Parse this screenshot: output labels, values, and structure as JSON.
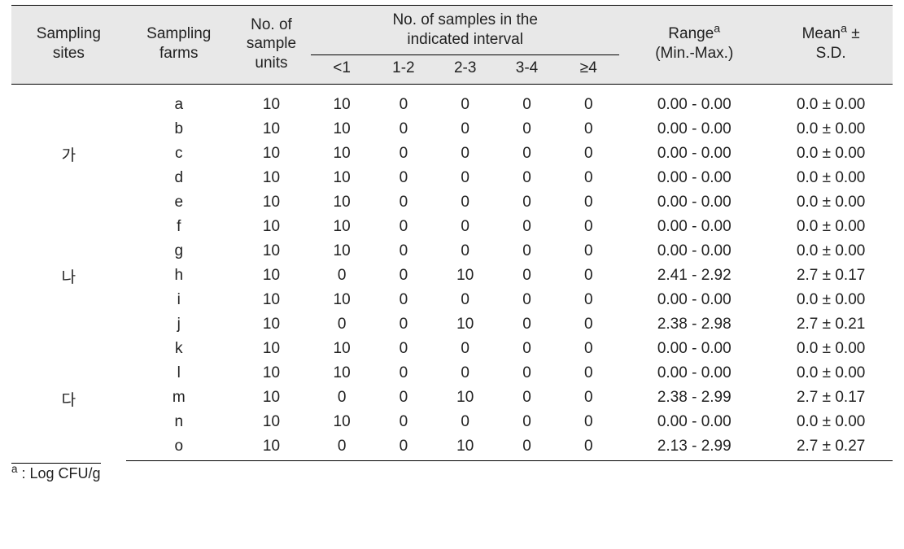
{
  "table": {
    "type": "table",
    "background_color": "#ffffff",
    "header_background_color": "#e8e8e8",
    "border_color": "#000000",
    "text_color": "#222222",
    "font_size_body_pt": 14,
    "font_size_header_pt": 14,
    "headers": {
      "sampling_sites": "Sampling\nsites",
      "sampling_farms": "Sampling\nfarms",
      "sample_units": "No. of\nsample\nunits",
      "interval_group": "No. of samples in the\nindicated interval",
      "interval_labels": [
        "<1",
        "1-2",
        "2-3",
        "3-4",
        "≥4"
      ],
      "range_html": "Range<span class=\"sup\">a</span><br>(Min.-Max.)",
      "mean_html": "Mean<span class=\"sup\">a</span> ±<br>S.D."
    },
    "column_widths_pct": [
      13,
      12,
      9,
      7,
      7,
      7,
      7,
      7,
      17,
      14
    ],
    "column_align": [
      "center",
      "center",
      "center",
      "center",
      "center",
      "center",
      "center",
      "center",
      "center",
      "center"
    ],
    "sites": [
      {
        "label": "가",
        "span_from": "a",
        "span_to": "e",
        "row_index_start": 0,
        "row_index_end": 4,
        "label_row_index": 2
      },
      {
        "label": "나",
        "span_from": "f",
        "span_to": "j",
        "row_index_start": 5,
        "row_index_end": 9,
        "label_row_index": 7
      },
      {
        "label": "다",
        "span_from": "k",
        "span_to": "o",
        "row_index_start": 10,
        "row_index_end": 14,
        "label_row_index": 12
      }
    ],
    "rows": [
      {
        "farm": "a",
        "units": 10,
        "intervals": [
          10,
          0,
          0,
          0,
          0
        ],
        "range": "0.00  -  0.00",
        "mean": "0.0  ± 0.00"
      },
      {
        "farm": "b",
        "units": 10,
        "intervals": [
          10,
          0,
          0,
          0,
          0
        ],
        "range": "0.00  -  0.00",
        "mean": "0.0  ± 0.00"
      },
      {
        "farm": "c",
        "units": 10,
        "intervals": [
          10,
          0,
          0,
          0,
          0
        ],
        "range": "0.00  -  0.00",
        "mean": "0.0  ± 0.00"
      },
      {
        "farm": "d",
        "units": 10,
        "intervals": [
          10,
          0,
          0,
          0,
          0
        ],
        "range": "0.00  -  0.00",
        "mean": "0.0  ± 0.00"
      },
      {
        "farm": "e",
        "units": 10,
        "intervals": [
          10,
          0,
          0,
          0,
          0
        ],
        "range": "0.00  -  0.00",
        "mean": "0.0  ± 0.00"
      },
      {
        "farm": "f",
        "units": 10,
        "intervals": [
          10,
          0,
          0,
          0,
          0
        ],
        "range": "0.00  -  0.00",
        "mean": "0.0  ± 0.00"
      },
      {
        "farm": "g",
        "units": 10,
        "intervals": [
          10,
          0,
          0,
          0,
          0
        ],
        "range": "0.00  -  0.00",
        "mean": "0.0  ±   0.00"
      },
      {
        "farm": "h",
        "units": 10,
        "intervals": [
          0,
          0,
          10,
          0,
          0
        ],
        "range": "2.41  -  2.92",
        "mean": "2.7  ± 0.17"
      },
      {
        "farm": "i",
        "units": 10,
        "intervals": [
          10,
          0,
          0,
          0,
          0
        ],
        "range": "0.00  -  0.00",
        "mean": "0.0  ±   0.00"
      },
      {
        "farm": "j",
        "units": 10,
        "intervals": [
          0,
          0,
          10,
          0,
          0
        ],
        "range": "2.38  -  2.98",
        "mean": "2.7  ± 0.21"
      },
      {
        "farm": "k",
        "units": 10,
        "intervals": [
          10,
          0,
          0,
          0,
          0
        ],
        "range": "0.00  -  0.00",
        "mean": "0.0  ± 0.00"
      },
      {
        "farm": "l",
        "units": 10,
        "intervals": [
          10,
          0,
          0,
          0,
          0
        ],
        "range": "0.00  -  0.00",
        "mean": "0.0  ± 0.00"
      },
      {
        "farm": "m",
        "units": 10,
        "intervals": [
          0,
          0,
          10,
          0,
          0
        ],
        "range": "2.38  -  2.99",
        "mean": "2.7  ± 0.17"
      },
      {
        "farm": "n",
        "units": 10,
        "intervals": [
          10,
          0,
          0,
          0,
          0
        ],
        "range": "0.00  -  0.00",
        "mean": "0.0  ± 0.00"
      },
      {
        "farm": "o",
        "units": 10,
        "intervals": [
          0,
          0,
          10,
          0,
          0
        ],
        "range": "2.13  -  2.99",
        "mean": "2.7  ± 0.27"
      }
    ]
  },
  "footnote_html": "<span class=\"sup\">a</span> : Log CFU/g"
}
